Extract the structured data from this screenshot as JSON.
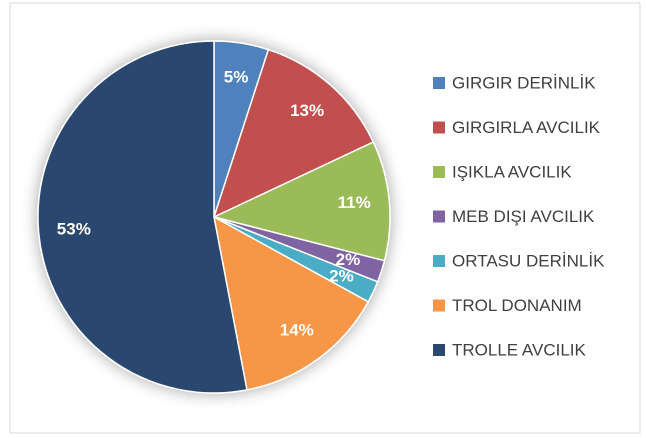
{
  "chart_data": {
    "type": "pie",
    "categories": [
      "GIRGIR DERİNLİK",
      "GIRGIRLA AVCILIK",
      "IŞIKLA AVCILIK",
      "MEB DIŞI AVCILIK",
      "ORTASU DERİNLİK",
      "TROL DONANIM",
      "TROLLE AVCILIK"
    ],
    "values": [
      5,
      13,
      11,
      2,
      2,
      14,
      53
    ],
    "value_labels": [
      "5%",
      "13%",
      "11%",
      "2%",
      "2%",
      "14%",
      "53%"
    ],
    "colors": [
      "#4f81bd",
      "#c0504d",
      "#9bbb59",
      "#8064a2",
      "#4bacc6",
      "#f79646",
      "#2c4770"
    ]
  }
}
